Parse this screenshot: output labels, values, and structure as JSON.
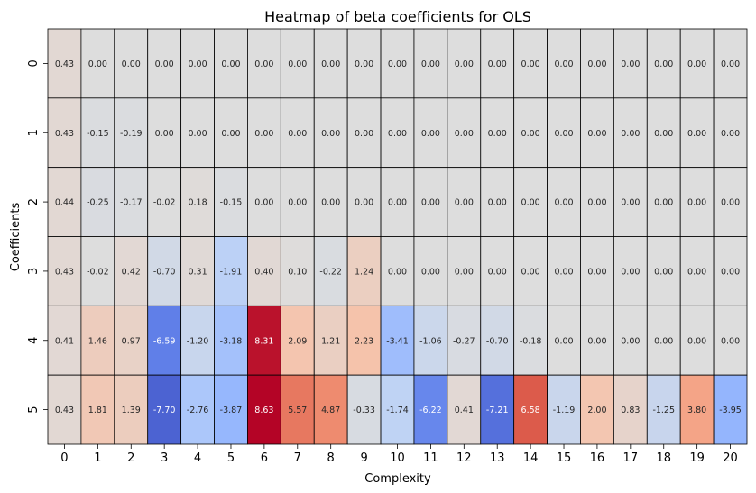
{
  "chart_data": {
    "type": "heatmap",
    "title": "Heatmap of beta coefficients for OLS",
    "xlabel": "Complexity",
    "ylabel": "Coefficients",
    "x_categories": [
      "0",
      "1",
      "2",
      "3",
      "4",
      "5",
      "6",
      "7",
      "8",
      "9",
      "10",
      "11",
      "12",
      "13",
      "14",
      "15",
      "16",
      "17",
      "18",
      "19",
      "20"
    ],
    "y_categories": [
      "0",
      "1",
      "2",
      "3",
      "4",
      "5"
    ],
    "values": [
      [
        0.43,
        0.0,
        0.0,
        0.0,
        0.0,
        0.0,
        0.0,
        0.0,
        0.0,
        0.0,
        0.0,
        0.0,
        0.0,
        0.0,
        0.0,
        0.0,
        0.0,
        0.0,
        0.0,
        0.0,
        0.0
      ],
      [
        0.43,
        -0.15,
        -0.19,
        0.0,
        0.0,
        0.0,
        0.0,
        0.0,
        0.0,
        0.0,
        0.0,
        0.0,
        0.0,
        0.0,
        0.0,
        0.0,
        0.0,
        0.0,
        0.0,
        0.0,
        0.0
      ],
      [
        0.44,
        -0.25,
        -0.17,
        -0.02,
        0.18,
        -0.15,
        0.0,
        0.0,
        0.0,
        0.0,
        0.0,
        0.0,
        0.0,
        0.0,
        0.0,
        0.0,
        0.0,
        0.0,
        0.0,
        0.0,
        0.0
      ],
      [
        0.43,
        -0.02,
        0.42,
        -0.7,
        0.31,
        -1.91,
        0.4,
        0.1,
        -0.22,
        1.24,
        0.0,
        0.0,
        0.0,
        0.0,
        0.0,
        0.0,
        0.0,
        0.0,
        0.0,
        0.0,
        0.0
      ],
      [
        0.41,
        1.46,
        0.97,
        -6.59,
        -1.2,
        -3.18,
        8.31,
        2.09,
        1.21,
        2.23,
        -3.41,
        -1.06,
        -0.27,
        -0.7,
        -0.18,
        0.0,
        0.0,
        0.0,
        0.0,
        0.0,
        0.0
      ],
      [
        0.43,
        1.81,
        1.39,
        -7.7,
        -2.76,
        -3.87,
        8.63,
        5.57,
        4.87,
        -0.33,
        -1.74,
        -6.22,
        0.41,
        -7.21,
        6.58,
        -1.19,
        2.0,
        0.83,
        -1.25,
        3.8,
        -3.95
      ]
    ],
    "colormap": "coolwarm",
    "value_range": [
      -8.63,
      8.63
    ],
    "cell_border_color": "#000000",
    "colorbar": false
  }
}
